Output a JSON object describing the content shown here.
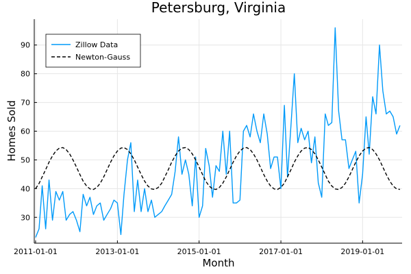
{
  "chart_data": {
    "type": "line",
    "title": "Petersburg, Virginia",
    "xlabel": "Month",
    "ylabel": "Homes Sold",
    "x_tick_labels": [
      "2011-01-01",
      "2013-01-01",
      "2015-01-01",
      "2017-01-01",
      "2019-01-01"
    ],
    "x_tick_dates": [
      "2011-01-01",
      "2013-01-01",
      "2015-01-01",
      "2017-01-01",
      "2019-01-01"
    ],
    "y_ticks": [
      30,
      40,
      50,
      60,
      70,
      80,
      90
    ],
    "xlim": [
      "2010-12-20",
      "2019-12-20"
    ],
    "ylim": [
      21,
      99
    ],
    "grid": true,
    "legend_position": "top-left",
    "colors": {
      "zillow": "#009af9",
      "newton": "#000000"
    },
    "series": [
      {
        "name": "Zillow Data",
        "style": "solid",
        "start": "2011-01-01",
        "frequency": "monthly",
        "values": [
          23,
          26,
          41,
          26,
          43,
          29,
          39,
          36,
          39,
          29,
          31,
          32,
          29,
          25,
          38,
          34,
          37,
          31,
          34,
          35,
          29,
          31,
          33,
          36,
          35,
          24,
          38,
          50,
          56,
          32,
          43,
          32,
          40,
          32,
          36,
          30,
          31,
          32,
          34,
          36,
          38,
          46,
          58,
          45,
          50,
          45,
          34,
          51,
          30,
          34,
          54,
          48,
          37,
          48,
          46,
          60,
          45,
          60,
          35,
          35,
          36,
          60,
          62,
          58,
          66,
          60,
          56,
          66,
          59,
          47,
          51,
          51,
          40,
          69,
          44,
          62,
          80,
          56,
          61,
          57,
          60,
          49,
          58,
          42,
          37,
          66,
          62,
          63,
          96,
          67,
          57,
          57,
          47,
          50,
          53,
          35,
          45,
          65,
          52,
          72,
          66,
          90,
          74,
          66,
          67,
          65,
          59,
          62
        ]
      },
      {
        "name": "Newton-Gauss",
        "style": "dashed",
        "start": "2011-01-01",
        "frequency": "monthly",
        "values": [
          40.0,
          41.8,
          44.1,
          46.6,
          49.2,
          51.4,
          53.1,
          54.1,
          54.3,
          53.6,
          52.1,
          50.0,
          47.5,
          44.9,
          42.6,
          40.9,
          39.9,
          39.7,
          40.4,
          41.9,
          44.1,
          46.6,
          49.2,
          51.4,
          53.1,
          54.1,
          54.3,
          53.6,
          52.1,
          50.0,
          47.5,
          44.9,
          42.6,
          40.9,
          39.9,
          39.7,
          40.4,
          41.9,
          44.1,
          46.6,
          49.2,
          51.4,
          53.1,
          54.1,
          54.3,
          53.6,
          52.1,
          50.0,
          47.5,
          44.9,
          42.6,
          40.9,
          39.9,
          39.7,
          40.4,
          41.9,
          44.1,
          46.6,
          49.2,
          51.4,
          53.1,
          54.1,
          54.3,
          53.6,
          52.1,
          50.0,
          47.5,
          44.9,
          42.6,
          40.9,
          39.9,
          39.7,
          40.4,
          41.9,
          44.1,
          46.6,
          49.2,
          51.4,
          53.1,
          54.1,
          54.3,
          53.6,
          52.1,
          50.0,
          47.5,
          44.9,
          42.6,
          40.9,
          39.9,
          39.7,
          40.4,
          41.9,
          44.1,
          46.6,
          49.2,
          51.4,
          53.1,
          54.1,
          54.3,
          53.6,
          52.1,
          50.0,
          47.5,
          44.9,
          42.6,
          40.9,
          39.9,
          39.7
        ]
      }
    ]
  }
}
